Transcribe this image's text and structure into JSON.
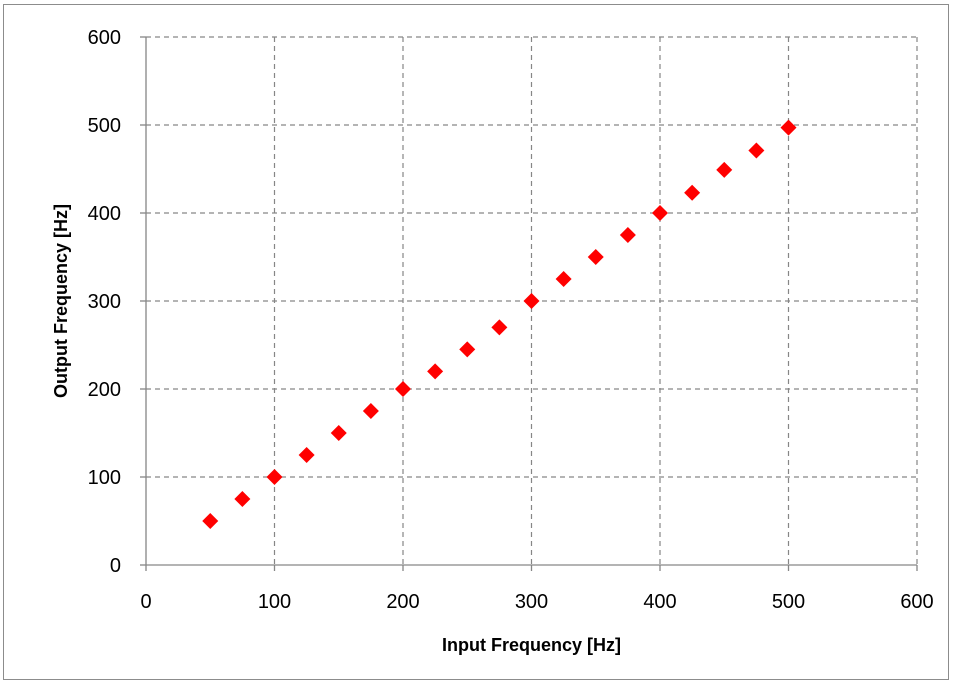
{
  "chart_data": {
    "type": "scatter",
    "title": "",
    "xlabel": "Input Frequency [Hz]",
    "ylabel": "Output Frequency [Hz]",
    "xlim": [
      0,
      600
    ],
    "ylim": [
      0,
      600
    ],
    "xticks": [
      0,
      100,
      200,
      300,
      400,
      500,
      600
    ],
    "yticks": [
      0,
      100,
      200,
      300,
      400,
      500,
      600
    ],
    "grid": true,
    "legend": "none",
    "marker": "diamond",
    "marker_color": "#ff0000",
    "series": [
      {
        "x": [
          50,
          75,
          100,
          125,
          150,
          175,
          200,
          225,
          250,
          275,
          300,
          325,
          350,
          375,
          400,
          425,
          450,
          475,
          500
        ],
        "y": [
          50,
          75,
          100,
          125,
          150,
          175,
          200,
          220,
          245,
          270,
          300,
          325,
          350,
          375,
          400,
          423,
          449,
          471,
          497
        ]
      }
    ]
  }
}
